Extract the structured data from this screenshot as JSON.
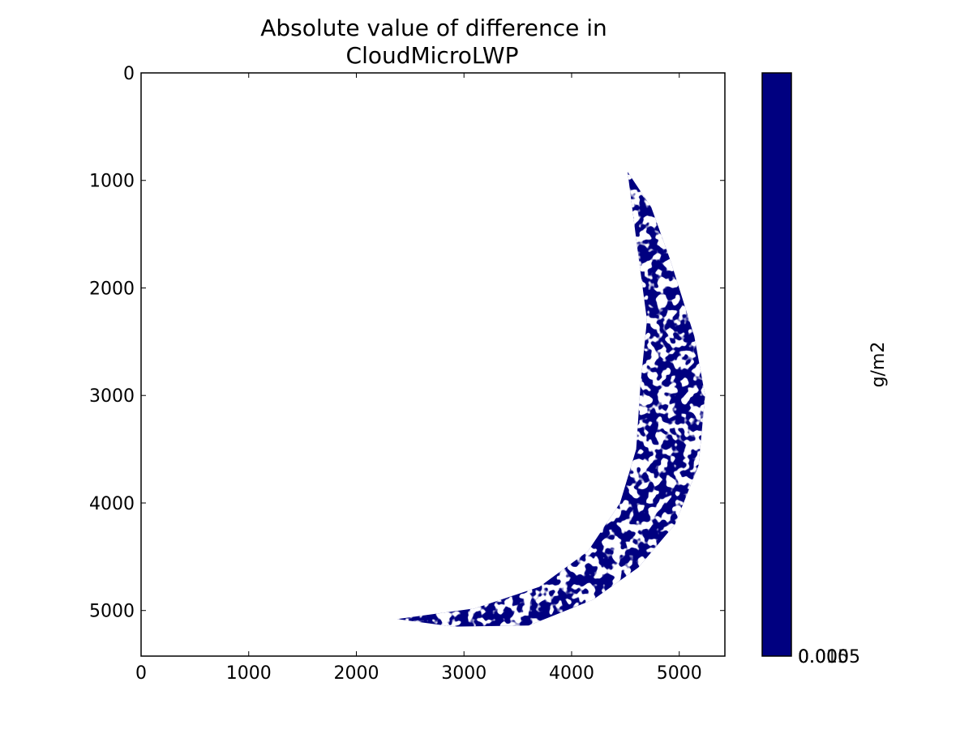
{
  "chart_data": {
    "type": "heatmap",
    "title": [
      "Absolute value of difference in",
      "CloudMicroLWP"
    ],
    "xlim": [
      0,
      5424
    ],
    "ylim": [
      5424,
      0
    ],
    "x_ticks": [
      0,
      1000,
      2000,
      3000,
      4000,
      5000
    ],
    "y_ticks": [
      0,
      1000,
      2000,
      3000,
      4000,
      5000
    ],
    "x_tick_labels": [
      "0",
      "1000",
      "2000",
      "3000",
      "4000",
      "5000"
    ],
    "y_tick_labels": [
      "0",
      "1000",
      "2000",
      "3000",
      "4000",
      "5000"
    ],
    "grid": false,
    "colormap_fill": "#000080",
    "colorbar": {
      "label": "g/m2",
      "tick_labels": [
        "0.000",
        "0.005",
        "0.010",
        "0.015"
      ],
      "tick_label_rendered": "0.0005"
    },
    "data_region": {
      "shape": "crescent",
      "outer_edge": [
        [
          4520,
          920
        ],
        [
          4740,
          1250
        ],
        [
          4920,
          1750
        ],
        [
          5140,
          2450
        ],
        [
          5240,
          3000
        ],
        [
          5180,
          3650
        ],
        [
          4960,
          4200
        ],
        [
          4620,
          4600
        ],
        [
          4200,
          4900
        ],
        [
          3600,
          5140
        ],
        [
          2900,
          5150
        ],
        [
          2380,
          5080
        ]
      ],
      "inner_edge": [
        [
          2380,
          5080
        ],
        [
          3100,
          4980
        ],
        [
          3700,
          4780
        ],
        [
          4150,
          4450
        ],
        [
          4450,
          4000
        ],
        [
          4600,
          3500
        ],
        [
          4640,
          2900
        ],
        [
          4700,
          2300
        ],
        [
          4620,
          1700
        ],
        [
          4520,
          920
        ]
      ]
    }
  }
}
